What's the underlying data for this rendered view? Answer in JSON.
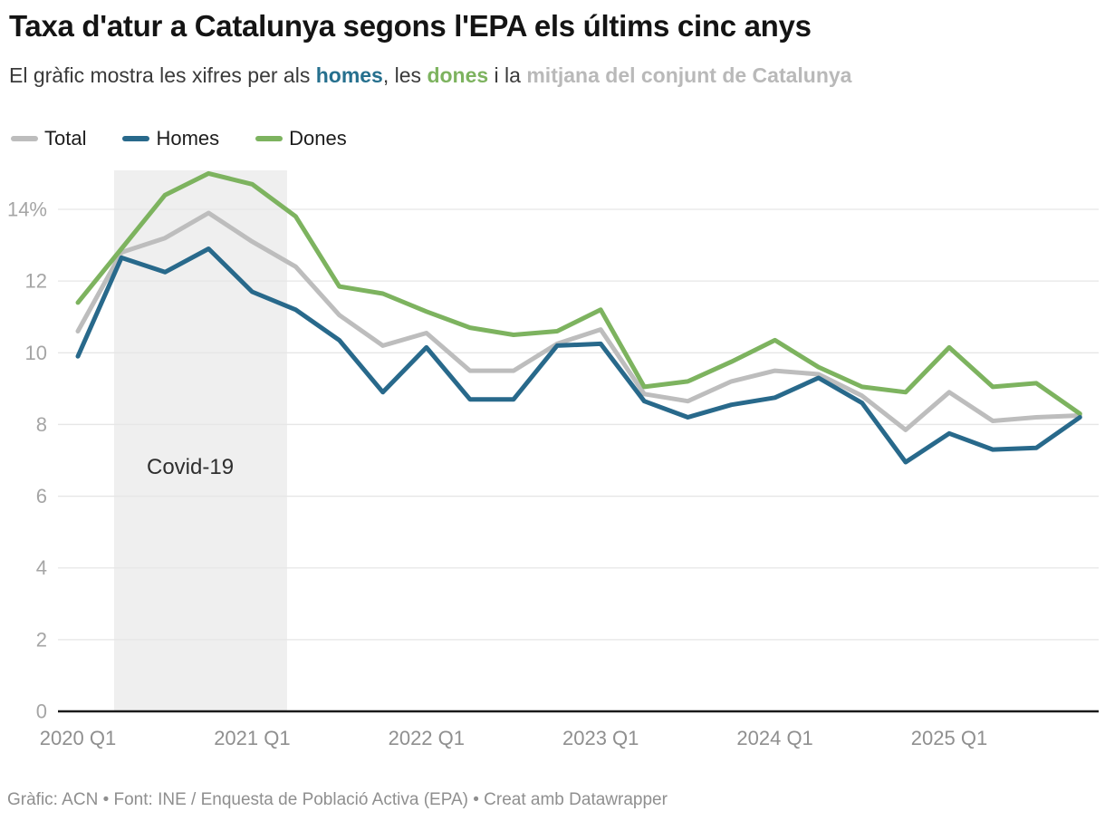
{
  "header": {
    "title": "Taxa d'atur a Catalunya segons l'EPA els últims cinc anys",
    "subtitle": {
      "prefix": "El gràfic mostra les xifres per als ",
      "homes_label": "homes",
      "sep1": ", les ",
      "dones_label": "dones",
      "sep2": " i la ",
      "total_label": "mitjana del conjunt de Catalunya"
    }
  },
  "legend": {
    "items": [
      {
        "id": "total",
        "label": "Total",
        "color": "#bdbdbd"
      },
      {
        "id": "homes",
        "label": "Homes",
        "color": "#28698b"
      },
      {
        "id": "dones",
        "label": "Dones",
        "color": "#7db35f"
      }
    ]
  },
  "chart_data": {
    "type": "line",
    "title": "Taxa d'atur a Catalunya segons l'EPA els últims cinc anys",
    "unit": "%",
    "categories": [
      "2020 Q1",
      "2020 Q2",
      "2020 Q3",
      "2020 Q4",
      "2021 Q1",
      "2021 Q2",
      "2021 Q3",
      "2021 Q4",
      "2022 Q1",
      "2022 Q2",
      "2022 Q3",
      "2022 Q4",
      "2023 Q1",
      "2023 Q2",
      "2023 Q3",
      "2023 Q4",
      "2024 Q1",
      "2024 Q2",
      "2024 Q3",
      "2024 Q4",
      "2025 Q1",
      "2025 Q2",
      "2025 Q3",
      "2025 Q4"
    ],
    "series": [
      {
        "name": "Total",
        "color": "#bdbdbd",
        "values": [
          10.6,
          12.8,
          13.2,
          13.9,
          13.1,
          12.4,
          11.05,
          10.2,
          10.55,
          9.5,
          9.5,
          10.25,
          10.65,
          8.85,
          8.65,
          9.2,
          9.5,
          9.4,
          8.8,
          7.85,
          8.9,
          8.1,
          8.2,
          8.25
        ]
      },
      {
        "name": "Dones",
        "color": "#7db35f",
        "values": [
          11.4,
          12.9,
          14.4,
          15.0,
          14.7,
          13.8,
          11.85,
          11.65,
          11.15,
          10.7,
          10.5,
          10.6,
          11.2,
          9.05,
          9.2,
          9.75,
          10.35,
          9.6,
          9.05,
          8.9,
          10.15,
          9.05,
          9.15,
          8.3
        ]
      },
      {
        "name": "Homes",
        "color": "#28698b",
        "values": [
          9.9,
          12.65,
          12.25,
          12.9,
          11.7,
          11.2,
          10.35,
          8.9,
          10.15,
          8.7,
          8.7,
          10.2,
          10.25,
          8.65,
          8.2,
          8.55,
          8.75,
          9.3,
          8.6,
          6.95,
          7.75,
          7.3,
          7.35,
          8.2
        ]
      }
    ],
    "xlabel": "",
    "ylabel": "",
    "ylim": [
      0,
      15.3
    ],
    "grid": true,
    "legend_position": "top-left",
    "y_ticks": [
      {
        "value": 0,
        "label": "0"
      },
      {
        "value": 2,
        "label": "2"
      },
      {
        "value": 4,
        "label": "4"
      },
      {
        "value": 6,
        "label": "6"
      },
      {
        "value": 8,
        "label": "8"
      },
      {
        "value": 10,
        "label": "10"
      },
      {
        "value": 12,
        "label": "12"
      },
      {
        "value": 14,
        "label": "14%"
      }
    ],
    "x_ticks": [
      {
        "index": 0,
        "label": "2020 Q1"
      },
      {
        "index": 4,
        "label": "2021 Q1"
      },
      {
        "index": 8,
        "label": "2022 Q1"
      },
      {
        "index": 12,
        "label": "2023 Q1"
      },
      {
        "index": 16,
        "label": "2024 Q1"
      },
      {
        "index": 20,
        "label": "2025 Q1"
      }
    ],
    "annotation": {
      "label": "Covid-19",
      "band_from_index": 0.83,
      "band_to_index": 4.8,
      "band_color": "#efefef"
    }
  },
  "footer": {
    "text": "Gràfic: ACN • Font: INE / Enquesta de Població Activa (EPA) • Creat amb Datawrapper"
  }
}
